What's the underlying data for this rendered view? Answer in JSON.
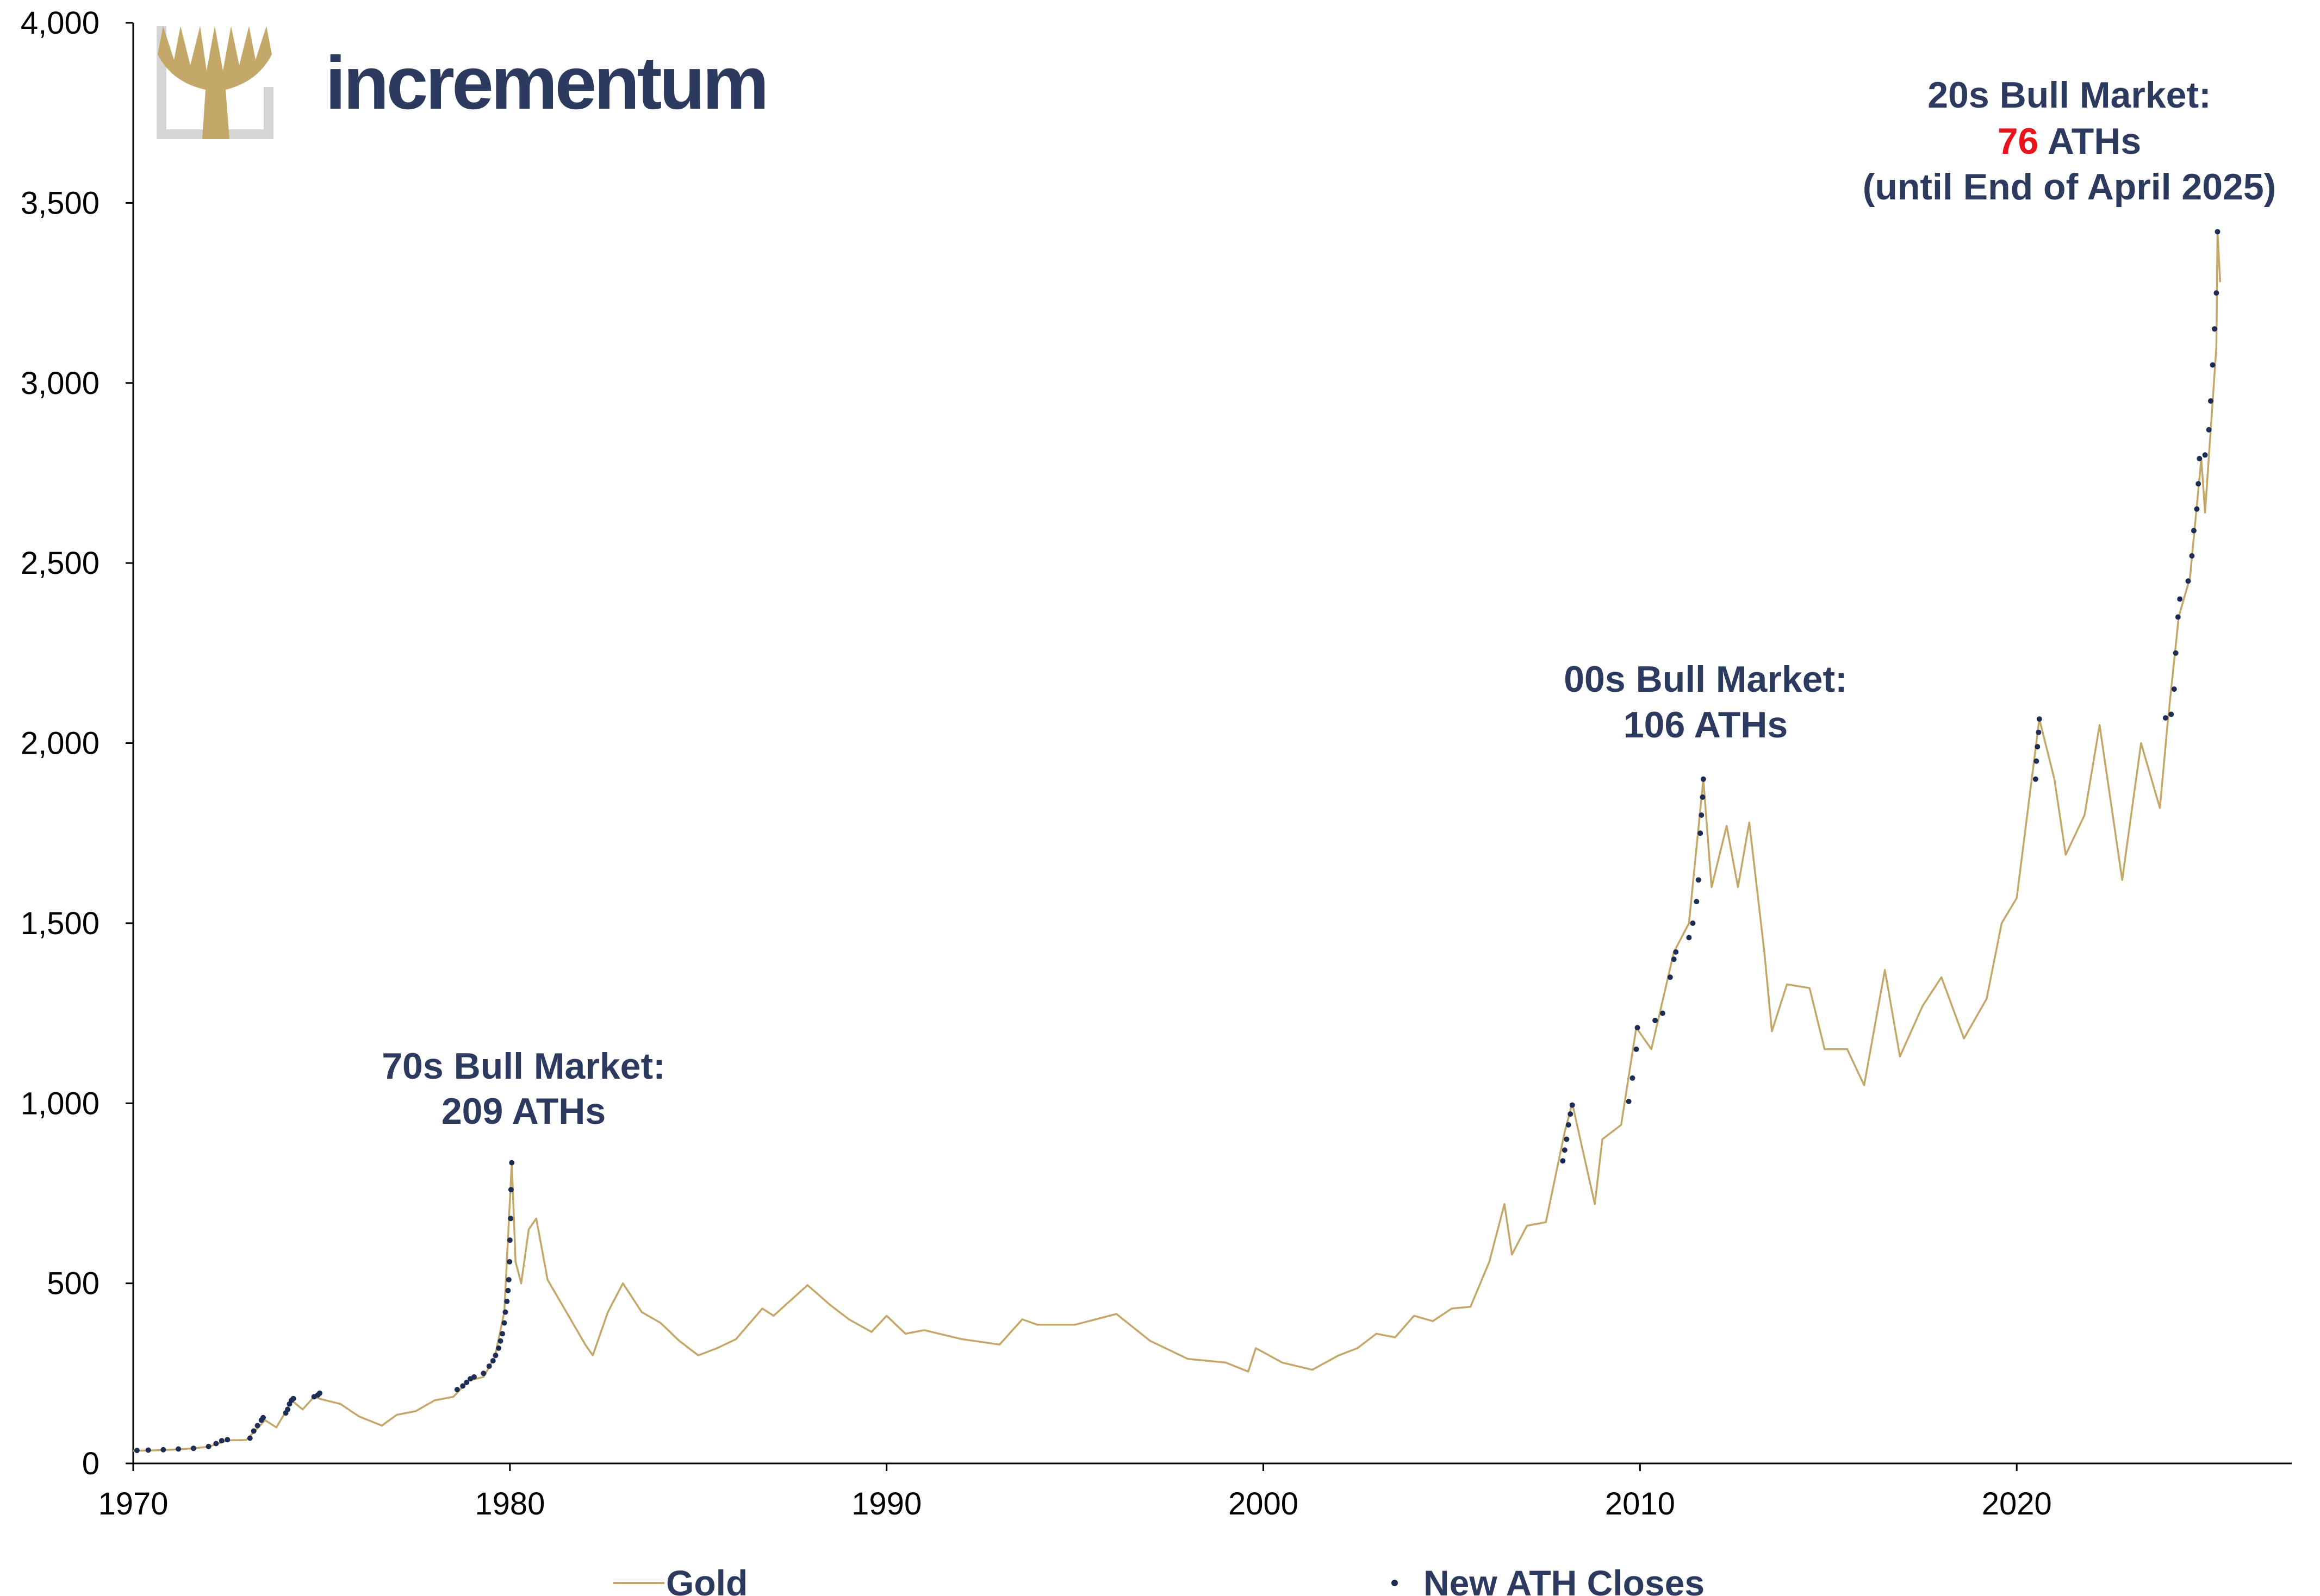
{
  "logo": {
    "name": "incrementum"
  },
  "legend": [
    {
      "label": "Gold",
      "symbol": "line"
    },
    {
      "label": "New ATH Closes",
      "symbol": "dot"
    }
  ],
  "colors": {
    "gold": "#c4a86a",
    "ath": "#1e2d55",
    "text": "#2b3a5e",
    "highlight": "#e8141b",
    "axis": "#000000"
  },
  "annotations": {
    "a70s": {
      "line1": "70s Bull Market:",
      "line2": "209 ATHs"
    },
    "a00s": {
      "line1": "00s Bull Market:",
      "line2": "106 ATHs"
    },
    "a20s": {
      "line1": "20s Bull Market:",
      "count": "76",
      "suffix": " ATHs",
      "line3": "(until End of April 2025)"
    }
  },
  "chart_data": {
    "type": "line",
    "x_ticks": [
      "1970",
      "1980",
      "1990",
      "2000",
      "2010",
      "2020"
    ],
    "y_ticks": [
      "0",
      "500",
      "1,000",
      "1,500",
      "2,000",
      "2,500",
      "3,000",
      "3,500",
      "4,000"
    ],
    "xlim": [
      1970,
      2027.3
    ],
    "ylim": [
      0,
      4000
    ],
    "grid": false,
    "legend_position": "bottom",
    "series": [
      {
        "name": "Gold",
        "style": "line",
        "points": [
          [
            1970.0,
            35
          ],
          [
            1970.5,
            36
          ],
          [
            1971.0,
            38
          ],
          [
            1971.5,
            41
          ],
          [
            1972.0,
            46
          ],
          [
            1972.5,
            64
          ],
          [
            1973.0,
            65
          ],
          [
            1973.5,
            120
          ],
          [
            1973.8,
            100
          ],
          [
            1974.0,
            135
          ],
          [
            1974.2,
            175
          ],
          [
            1974.5,
            150
          ],
          [
            1974.8,
            185
          ],
          [
            1975.0,
            178
          ],
          [
            1975.5,
            165
          ],
          [
            1976.0,
            130
          ],
          [
            1976.6,
            105
          ],
          [
            1977.0,
            135
          ],
          [
            1977.5,
            145
          ],
          [
            1978.0,
            175
          ],
          [
            1978.5,
            185
          ],
          [
            1978.9,
            230
          ],
          [
            1979.3,
            240
          ],
          [
            1979.6,
            295
          ],
          [
            1979.85,
            420
          ],
          [
            1980.05,
            835
          ],
          [
            1980.15,
            560
          ],
          [
            1980.3,
            500
          ],
          [
            1980.5,
            650
          ],
          [
            1980.7,
            680
          ],
          [
            1981.0,
            510
          ],
          [
            1981.5,
            420
          ],
          [
            1982.0,
            330
          ],
          [
            1982.2,
            300
          ],
          [
            1982.6,
            420
          ],
          [
            1983.0,
            500
          ],
          [
            1983.5,
            420
          ],
          [
            1984.0,
            390
          ],
          [
            1984.5,
            340
          ],
          [
            1985.0,
            300
          ],
          [
            1985.5,
            320
          ],
          [
            1986.0,
            345
          ],
          [
            1986.7,
            430
          ],
          [
            1987.0,
            410
          ],
          [
            1987.9,
            495
          ],
          [
            1988.5,
            440
          ],
          [
            1989.0,
            400
          ],
          [
            1989.6,
            365
          ],
          [
            1990.0,
            410
          ],
          [
            1990.5,
            360
          ],
          [
            1991.0,
            370
          ],
          [
            1992.0,
            345
          ],
          [
            1993.0,
            330
          ],
          [
            1993.6,
            400
          ],
          [
            1994.0,
            385
          ],
          [
            1995.0,
            385
          ],
          [
            1996.1,
            415
          ],
          [
            1997.0,
            340
          ],
          [
            1998.0,
            290
          ],
          [
            1999.0,
            280
          ],
          [
            1999.6,
            255
          ],
          [
            1999.8,
            320
          ],
          [
            2000.5,
            280
          ],
          [
            2001.3,
            260
          ],
          [
            2002.0,
            300
          ],
          [
            2002.5,
            320
          ],
          [
            2003.0,
            360
          ],
          [
            2003.5,
            350
          ],
          [
            2004.0,
            410
          ],
          [
            2004.5,
            395
          ],
          [
            2005.0,
            430
          ],
          [
            2005.5,
            435
          ],
          [
            2006.0,
            560
          ],
          [
            2006.4,
            720
          ],
          [
            2006.6,
            580
          ],
          [
            2007.0,
            660
          ],
          [
            2007.5,
            670
          ],
          [
            2008.0,
            920
          ],
          [
            2008.2,
            1000
          ],
          [
            2008.8,
            720
          ],
          [
            2009.0,
            900
          ],
          [
            2009.5,
            940
          ],
          [
            2009.9,
            1210
          ],
          [
            2010.3,
            1150
          ],
          [
            2010.9,
            1420
          ],
          [
            2011.3,
            1500
          ],
          [
            2011.68,
            1900
          ],
          [
            2011.9,
            1600
          ],
          [
            2012.3,
            1770
          ],
          [
            2012.6,
            1600
          ],
          [
            2012.9,
            1780
          ],
          [
            2013.3,
            1420
          ],
          [
            2013.5,
            1200
          ],
          [
            2013.9,
            1330
          ],
          [
            2014.5,
            1320
          ],
          [
            2014.9,
            1150
          ],
          [
            2015.5,
            1150
          ],
          [
            2015.95,
            1050
          ],
          [
            2016.5,
            1370
          ],
          [
            2016.9,
            1130
          ],
          [
            2017.5,
            1270
          ],
          [
            2018.0,
            1350
          ],
          [
            2018.6,
            1180
          ],
          [
            2019.2,
            1290
          ],
          [
            2019.6,
            1500
          ],
          [
            2020.0,
            1570
          ],
          [
            2020.6,
            2067
          ],
          [
            2021.0,
            1900
          ],
          [
            2021.3,
            1690
          ],
          [
            2021.8,
            1800
          ],
          [
            2022.2,
            2050
          ],
          [
            2022.8,
            1620
          ],
          [
            2023.3,
            2000
          ],
          [
            2023.8,
            1820
          ],
          [
            2024.0,
            2050
          ],
          [
            2024.3,
            2350
          ],
          [
            2024.6,
            2460
          ],
          [
            2024.9,
            2790
          ],
          [
            2025.0,
            2640
          ],
          [
            2025.3,
            3100
          ],
          [
            2025.33,
            3420
          ],
          [
            2025.4,
            3280
          ]
        ]
      },
      {
        "name": "New ATH Closes",
        "style": "dots",
        "points": [
          [
            1970.1,
            36
          ],
          [
            1970.4,
            37
          ],
          [
            1970.8,
            38
          ],
          [
            1971.2,
            40
          ],
          [
            1971.6,
            42
          ],
          [
            1972.0,
            47
          ],
          [
            1972.2,
            55
          ],
          [
            1972.35,
            63
          ],
          [
            1972.5,
            66
          ],
          [
            1973.1,
            70
          ],
          [
            1973.2,
            90
          ],
          [
            1973.3,
            105
          ],
          [
            1973.4,
            120
          ],
          [
            1973.45,
            127
          ],
          [
            1974.05,
            140
          ],
          [
            1974.1,
            150
          ],
          [
            1974.15,
            165
          ],
          [
            1974.2,
            175
          ],
          [
            1974.25,
            180
          ],
          [
            1974.8,
            185
          ],
          [
            1974.9,
            190
          ],
          [
            1974.95,
            195
          ],
          [
            1978.6,
            205
          ],
          [
            1978.75,
            215
          ],
          [
            1978.85,
            225
          ],
          [
            1978.95,
            235
          ],
          [
            1979.05,
            240
          ],
          [
            1979.3,
            250
          ],
          [
            1979.45,
            270
          ],
          [
            1979.55,
            285
          ],
          [
            1979.62,
            300
          ],
          [
            1979.7,
            320
          ],
          [
            1979.75,
            340
          ],
          [
            1979.8,
            360
          ],
          [
            1979.85,
            390
          ],
          [
            1979.88,
            420
          ],
          [
            1979.92,
            450
          ],
          [
            1979.95,
            480
          ],
          [
            1979.97,
            510
          ],
          [
            1979.99,
            560
          ],
          [
            1980.0,
            620
          ],
          [
            1980.02,
            680
          ],
          [
            1980.03,
            760
          ],
          [
            1980.05,
            835
          ],
          [
            2007.95,
            840
          ],
          [
            2008.0,
            870
          ],
          [
            2008.05,
            900
          ],
          [
            2008.1,
            940
          ],
          [
            2008.15,
            970
          ],
          [
            2008.2,
            995
          ],
          [
            2009.7,
            1005
          ],
          [
            2009.8,
            1070
          ],
          [
            2009.9,
            1150
          ],
          [
            2009.93,
            1210
          ],
          [
            2010.4,
            1230
          ],
          [
            2010.6,
            1250
          ],
          [
            2010.8,
            1350
          ],
          [
            2010.9,
            1400
          ],
          [
            2010.95,
            1420
          ],
          [
            2011.3,
            1460
          ],
          [
            2011.4,
            1500
          ],
          [
            2011.5,
            1560
          ],
          [
            2011.55,
            1620
          ],
          [
            2011.6,
            1750
          ],
          [
            2011.63,
            1800
          ],
          [
            2011.66,
            1850
          ],
          [
            2011.68,
            1900
          ],
          [
            2020.5,
            1900
          ],
          [
            2020.52,
            1950
          ],
          [
            2020.55,
            1990
          ],
          [
            2020.58,
            2030
          ],
          [
            2020.6,
            2067
          ],
          [
            2023.95,
            2070
          ],
          [
            2024.1,
            2080
          ],
          [
            2024.18,
            2150
          ],
          [
            2024.22,
            2250
          ],
          [
            2024.28,
            2350
          ],
          [
            2024.33,
            2400
          ],
          [
            2024.55,
            2450
          ],
          [
            2024.65,
            2520
          ],
          [
            2024.7,
            2590
          ],
          [
            2024.78,
            2650
          ],
          [
            2024.82,
            2720
          ],
          [
            2024.85,
            2790
          ],
          [
            2025.0,
            2800
          ],
          [
            2025.1,
            2870
          ],
          [
            2025.15,
            2950
          ],
          [
            2025.2,
            3050
          ],
          [
            2025.25,
            3150
          ],
          [
            2025.3,
            3250
          ],
          [
            2025.33,
            3420
          ]
        ]
      }
    ]
  }
}
